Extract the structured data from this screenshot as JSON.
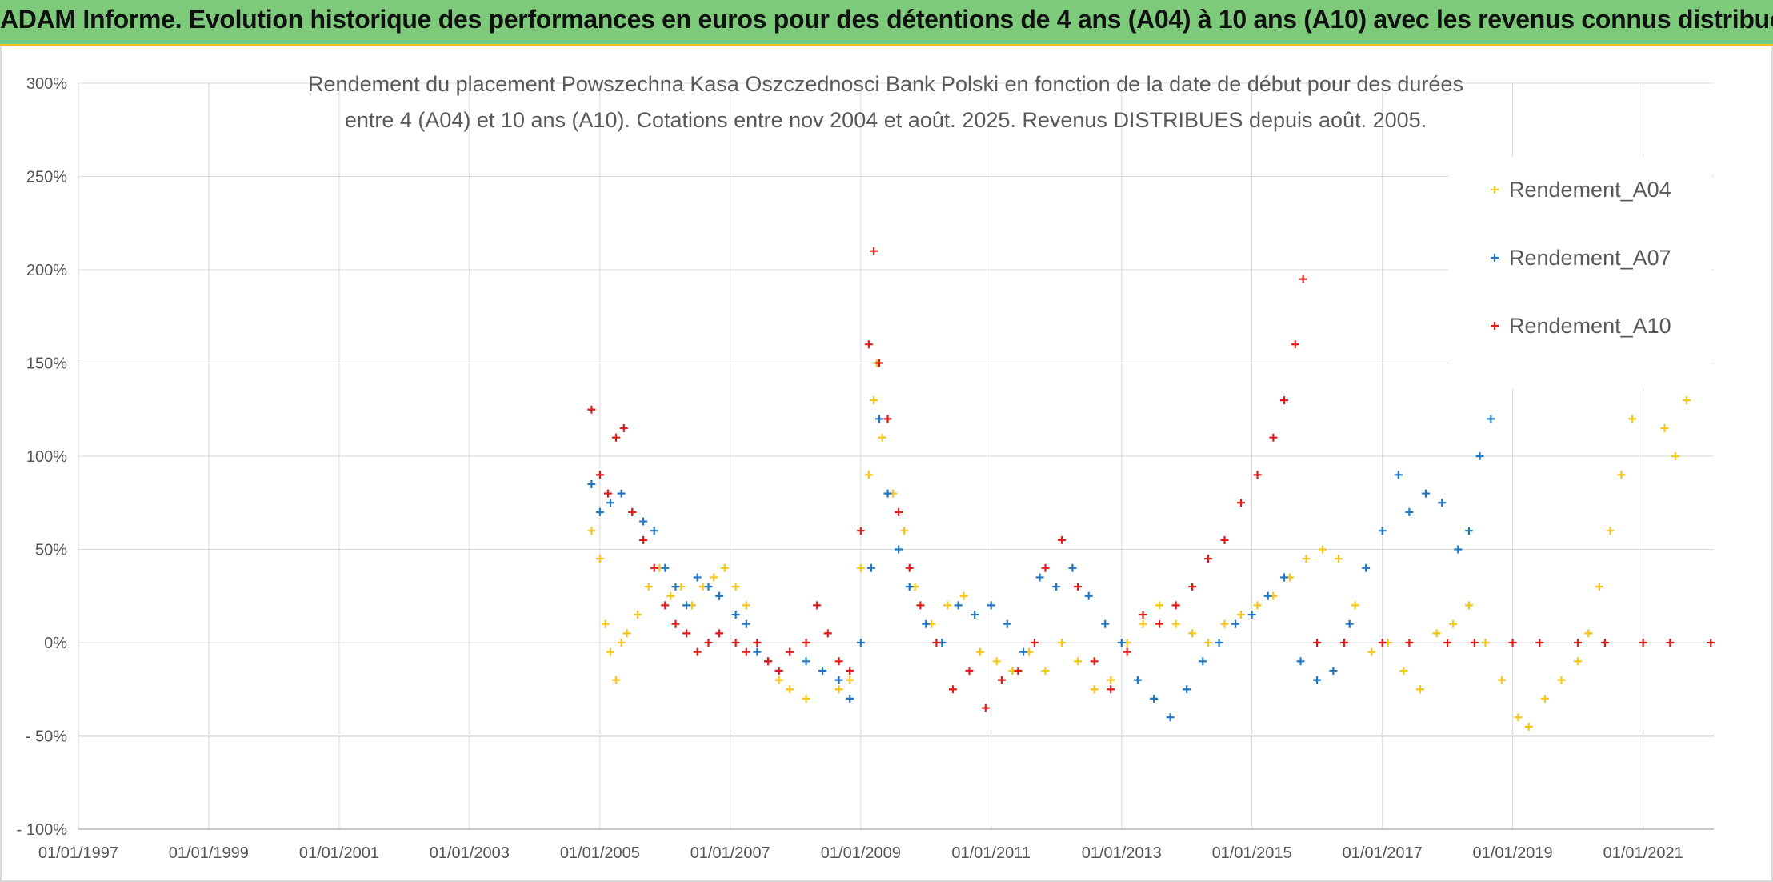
{
  "header": {
    "title": "ADAM Informe. Evolution historique des performances en euros pour des détentions de 4 ans (A04) à 10 ans (A10) avec les revenus connus distribués"
  },
  "chart_data": {
    "type": "scatter",
    "title_lines": [
      "Rendement du placement Powszechna Kasa Oszczednosci Bank Polski en fonction de la date de début pour des durées",
      "entre 4 (A04) et 10 ans (A10). Cotations entre nov 2004 et août. 2025. Revenus DISTRIBUES depuis août. 2005."
    ],
    "x_range": [
      "1997-01-01",
      "2022-02-01"
    ],
    "x_ticks": [
      "01/01/1997",
      "01/01/1999",
      "01/01/2001",
      "01/01/2003",
      "01/01/2005",
      "01/01/2007",
      "01/01/2009",
      "01/01/2011",
      "01/01/2013",
      "01/01/2015",
      "01/01/2017",
      "01/01/2019",
      "01/01/2021"
    ],
    "y_ticks": [
      -100,
      -50,
      0,
      50,
      100,
      150,
      200,
      250,
      300
    ],
    "y_tick_labels": [
      "- 100%",
      "- 50%",
      "0%",
      "50%",
      "100%",
      "150%",
      "200%",
      "250%",
      "300%"
    ],
    "ylim": [
      -100,
      300
    ],
    "grid": true,
    "legend_position": "top-right",
    "series": [
      {
        "name": "Rendement_A04",
        "color": "#f5c518",
        "points": [
          [
            "2004-11-15",
            60
          ],
          [
            "2005-01-01",
            45
          ],
          [
            "2005-02-01",
            10
          ],
          [
            "2005-03-01",
            -5
          ],
          [
            "2005-04-01",
            -20
          ],
          [
            "2005-05-01",
            0
          ],
          [
            "2005-06-01",
            5
          ],
          [
            "2005-08-01",
            15
          ],
          [
            "2005-10-01",
            30
          ],
          [
            "2005-12-01",
            40
          ],
          [
            "2006-02-01",
            25
          ],
          [
            "2006-04-01",
            30
          ],
          [
            "2006-06-01",
            20
          ],
          [
            "2006-08-01",
            30
          ],
          [
            "2006-10-01",
            35
          ],
          [
            "2006-12-01",
            40
          ],
          [
            "2007-02-01",
            30
          ],
          [
            "2007-04-01",
            20
          ],
          [
            "2007-06-01",
            0
          ],
          [
            "2007-08-01",
            -10
          ],
          [
            "2007-10-01",
            -20
          ],
          [
            "2007-12-01",
            -25
          ],
          [
            "2008-03-01",
            -30
          ],
          [
            "2008-06-01",
            -15
          ],
          [
            "2008-09-01",
            -25
          ],
          [
            "2008-11-01",
            -20
          ],
          [
            "2009-01-01",
            40
          ],
          [
            "2009-02-15",
            90
          ],
          [
            "2009-03-15",
            130
          ],
          [
            "2009-04-01",
            150
          ],
          [
            "2009-05-01",
            110
          ],
          [
            "2009-07-01",
            80
          ],
          [
            "2009-09-01",
            60
          ],
          [
            "2009-11-01",
            30
          ],
          [
            "2010-02-01",
            10
          ],
          [
            "2010-05-01",
            20
          ],
          [
            "2010-08-01",
            25
          ],
          [
            "2010-11-01",
            -5
          ],
          [
            "2011-02-01",
            -10
          ],
          [
            "2011-05-01",
            -15
          ],
          [
            "2011-08-01",
            -5
          ],
          [
            "2011-11-01",
            -15
          ],
          [
            "2012-02-01",
            0
          ],
          [
            "2012-05-01",
            -10
          ],
          [
            "2012-08-01",
            -25
          ],
          [
            "2012-11-01",
            -20
          ],
          [
            "2013-02-01",
            0
          ],
          [
            "2013-05-01",
            10
          ],
          [
            "2013-08-01",
            20
          ],
          [
            "2013-11-01",
            10
          ],
          [
            "2014-02-01",
            5
          ],
          [
            "2014-05-01",
            0
          ],
          [
            "2014-08-01",
            10
          ],
          [
            "2014-11-01",
            15
          ],
          [
            "2015-02-01",
            20
          ],
          [
            "2015-05-01",
            25
          ],
          [
            "2015-08-01",
            35
          ],
          [
            "2015-11-01",
            45
          ],
          [
            "2016-02-01",
            50
          ],
          [
            "2016-05-01",
            45
          ],
          [
            "2016-08-01",
            20
          ],
          [
            "2016-11-01",
            -5
          ],
          [
            "2017-02-01",
            0
          ],
          [
            "2017-05-01",
            -15
          ],
          [
            "2017-08-01",
            -25
          ],
          [
            "2017-11-01",
            5
          ],
          [
            "2018-02-01",
            10
          ],
          [
            "2018-05-01",
            20
          ],
          [
            "2018-08-01",
            0
          ],
          [
            "2018-11-01",
            -20
          ],
          [
            "2019-02-01",
            -40
          ],
          [
            "2019-04-01",
            -45
          ],
          [
            "2019-07-01",
            -30
          ],
          [
            "2019-10-01",
            -20
          ],
          [
            "2020-01-01",
            -10
          ],
          [
            "2020-03-01",
            5
          ],
          [
            "2020-05-01",
            30
          ],
          [
            "2020-07-01",
            60
          ],
          [
            "2020-09-01",
            90
          ],
          [
            "2020-11-01",
            120
          ],
          [
            "2021-01-01",
            145
          ],
          [
            "2021-03-01",
            140
          ],
          [
            "2021-05-01",
            115
          ],
          [
            "2021-07-01",
            100
          ],
          [
            "2021-09-01",
            130
          ],
          [
            "2021-11-01",
            145
          ]
        ]
      },
      {
        "name": "Rendement_A07",
        "color": "#1f77c4",
        "points": [
          [
            "2004-11-15",
            85
          ],
          [
            "2005-01-01",
            70
          ],
          [
            "2005-03-01",
            75
          ],
          [
            "2005-05-01",
            80
          ],
          [
            "2005-07-01",
            70
          ],
          [
            "2005-09-01",
            65
          ],
          [
            "2005-11-01",
            60
          ],
          [
            "2006-01-01",
            40
          ],
          [
            "2006-03-01",
            30
          ],
          [
            "2006-05-01",
            20
          ],
          [
            "2006-07-01",
            35
          ],
          [
            "2006-09-01",
            30
          ],
          [
            "2006-11-01",
            25
          ],
          [
            "2007-02-01",
            15
          ],
          [
            "2007-04-01",
            10
          ],
          [
            "2007-06-01",
            -5
          ],
          [
            "2007-08-01",
            -10
          ],
          [
            "2007-10-01",
            -15
          ],
          [
            "2007-12-01",
            -5
          ],
          [
            "2008-03-01",
            -10
          ],
          [
            "2008-06-01",
            -15
          ],
          [
            "2008-09-01",
            -20
          ],
          [
            "2008-11-01",
            -30
          ],
          [
            "2009-01-01",
            0
          ],
          [
            "2009-03-01",
            40
          ],
          [
            "2009-04-15",
            120
          ],
          [
            "2009-06-01",
            80
          ],
          [
            "2009-08-01",
            50
          ],
          [
            "2009-10-01",
            30
          ],
          [
            "2010-01-01",
            10
          ],
          [
            "2010-04-01",
            0
          ],
          [
            "2010-07-01",
            20
          ],
          [
            "2010-10-01",
            15
          ],
          [
            "2011-01-01",
            20
          ],
          [
            "2011-04-01",
            10
          ],
          [
            "2011-07-01",
            -5
          ],
          [
            "2011-10-01",
            35
          ],
          [
            "2012-01-01",
            30
          ],
          [
            "2012-04-01",
            40
          ],
          [
            "2012-07-01",
            25
          ],
          [
            "2012-10-01",
            10
          ],
          [
            "2013-01-01",
            0
          ],
          [
            "2013-04-01",
            -20
          ],
          [
            "2013-07-01",
            -30
          ],
          [
            "2013-10-01",
            -40
          ],
          [
            "2014-01-01",
            -25
          ],
          [
            "2014-04-01",
            -10
          ],
          [
            "2014-07-01",
            0
          ],
          [
            "2014-10-01",
            10
          ],
          [
            "2015-01-01",
            15
          ],
          [
            "2015-04-01",
            25
          ],
          [
            "2015-07-01",
            35
          ],
          [
            "2015-10-01",
            -10
          ],
          [
            "2016-01-01",
            -20
          ],
          [
            "2016-04-01",
            -15
          ],
          [
            "2016-07-01",
            10
          ],
          [
            "2016-10-01",
            40
          ],
          [
            "2017-01-01",
            60
          ],
          [
            "2017-04-01",
            90
          ],
          [
            "2017-06-01",
            70
          ],
          [
            "2017-09-01",
            80
          ],
          [
            "2017-12-01",
            75
          ],
          [
            "2018-03-01",
            50
          ],
          [
            "2018-05-01",
            60
          ],
          [
            "2018-07-01",
            100
          ],
          [
            "2018-09-01",
            120
          ],
          [
            "2018-10-15",
            140
          ]
        ]
      },
      {
        "name": "Rendement_A10",
        "color": "#e31a1a",
        "points": [
          [
            "2004-11-15",
            125
          ],
          [
            "2005-01-01",
            90
          ],
          [
            "2005-02-15",
            80
          ],
          [
            "2005-04-01",
            110
          ],
          [
            "2005-05-15",
            115
          ],
          [
            "2005-07-01",
            70
          ],
          [
            "2005-09-01",
            55
          ],
          [
            "2005-11-01",
            40
          ],
          [
            "2006-01-01",
            20
          ],
          [
            "2006-03-01",
            10
          ],
          [
            "2006-05-01",
            5
          ],
          [
            "2006-07-01",
            -5
          ],
          [
            "2006-09-01",
            0
          ],
          [
            "2006-11-01",
            5
          ],
          [
            "2007-02-01",
            0
          ],
          [
            "2007-04-01",
            -5
          ],
          [
            "2007-06-01",
            0
          ],
          [
            "2007-08-01",
            -10
          ],
          [
            "2007-10-01",
            -15
          ],
          [
            "2007-12-01",
            -5
          ],
          [
            "2008-03-01",
            0
          ],
          [
            "2008-05-01",
            20
          ],
          [
            "2008-07-01",
            5
          ],
          [
            "2008-09-01",
            -10
          ],
          [
            "2008-11-01",
            -15
          ],
          [
            "2009-01-01",
            60
          ],
          [
            "2009-02-15",
            160
          ],
          [
            "2009-03-15",
            210
          ],
          [
            "2009-04-15",
            150
          ],
          [
            "2009-06-01",
            120
          ],
          [
            "2009-08-01",
            70
          ],
          [
            "2009-10-01",
            40
          ],
          [
            "2009-12-01",
            20
          ],
          [
            "2010-03-01",
            0
          ],
          [
            "2010-06-01",
            -25
          ],
          [
            "2010-09-01",
            -15
          ],
          [
            "2010-12-01",
            -35
          ],
          [
            "2011-03-01",
            -20
          ],
          [
            "2011-06-01",
            -15
          ],
          [
            "2011-09-01",
            0
          ],
          [
            "2011-11-01",
            40
          ],
          [
            "2012-02-01",
            55
          ],
          [
            "2012-05-01",
            30
          ],
          [
            "2012-08-01",
            -10
          ],
          [
            "2012-11-01",
            -25
          ],
          [
            "2013-02-01",
            -5
          ],
          [
            "2013-05-01",
            15
          ],
          [
            "2013-08-01",
            10
          ],
          [
            "2013-11-01",
            20
          ],
          [
            "2014-02-01",
            30
          ],
          [
            "2014-05-01",
            45
          ],
          [
            "2014-08-01",
            55
          ],
          [
            "2014-11-01",
            75
          ],
          [
            "2015-02-01",
            90
          ],
          [
            "2015-05-01",
            110
          ],
          [
            "2015-07-01",
            130
          ],
          [
            "2015-09-01",
            160
          ],
          [
            "2015-10-15",
            195
          ],
          [
            "2016-01-01",
            0
          ],
          [
            "2016-06-01",
            0
          ],
          [
            "2017-01-01",
            0
          ],
          [
            "2017-06-01",
            0
          ],
          [
            "2018-01-01",
            0
          ],
          [
            "2018-06-01",
            0
          ],
          [
            "2019-01-01",
            0
          ],
          [
            "2019-06-01",
            0
          ],
          [
            "2020-01-01",
            0
          ],
          [
            "2020-06-01",
            0
          ],
          [
            "2021-01-01",
            0
          ],
          [
            "2021-06-01",
            0
          ],
          [
            "2022-01-15",
            0
          ]
        ]
      }
    ]
  }
}
